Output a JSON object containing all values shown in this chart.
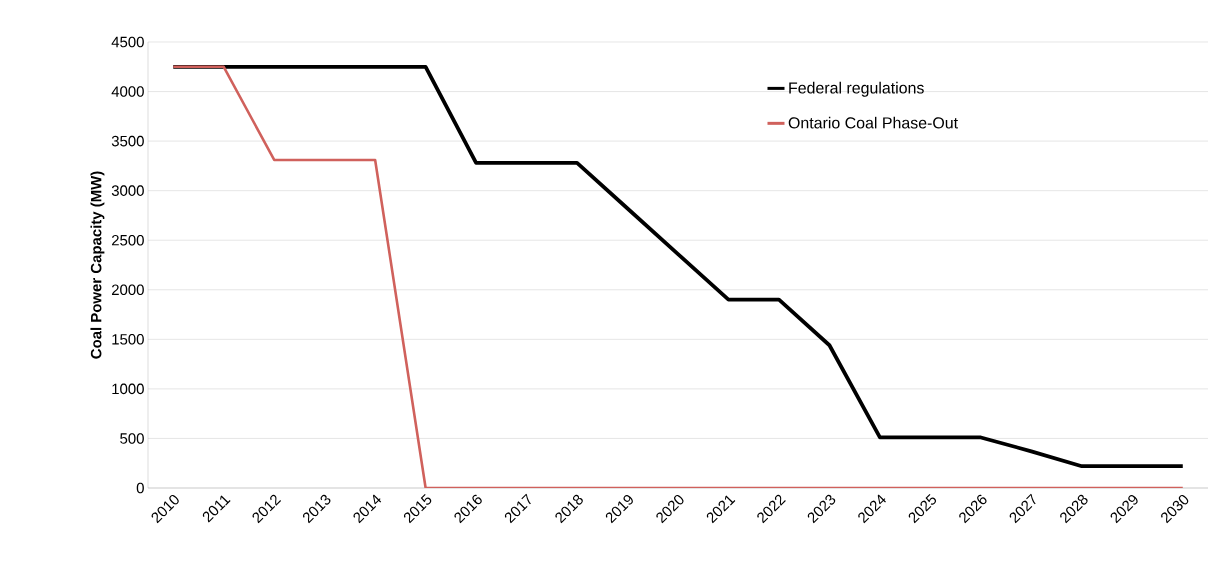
{
  "chart_data": {
    "type": "line",
    "ylabel": "Coal Power Capacity (MW)",
    "categories": [
      "2010",
      "2011",
      "2012",
      "2013",
      "2014",
      "2015",
      "2016",
      "2017",
      "2018",
      "2019",
      "2020",
      "2021",
      "2022",
      "2023",
      "2024",
      "2025",
      "2026",
      "2027",
      "2028",
      "2029",
      "2030"
    ],
    "series": [
      {
        "name": "Federal regulations",
        "color": "#000000",
        "values": [
          4250,
          4250,
          4250,
          4250,
          4250,
          4250,
          3280,
          3280,
          3280,
          2820,
          2360,
          1900,
          1900,
          1440,
          510,
          510,
          510,
          370,
          220,
          220,
          220
        ]
      },
      {
        "name": "Ontario Coal Phase-Out",
        "color": "#d0615c",
        "values": [
          4250,
          4250,
          3310,
          3310,
          3310,
          0,
          0,
          0,
          0,
          0,
          0,
          0,
          0,
          0,
          0,
          0,
          0,
          0,
          0,
          0,
          0
        ]
      }
    ],
    "ylim": [
      0,
      4500
    ],
    "yticks": [
      0,
      500,
      1000,
      1500,
      2000,
      2500,
      3000,
      3500,
      4000,
      4500
    ],
    "grid": "y",
    "legend": "top right",
    "marker": "none",
    "line_style": "solid"
  }
}
